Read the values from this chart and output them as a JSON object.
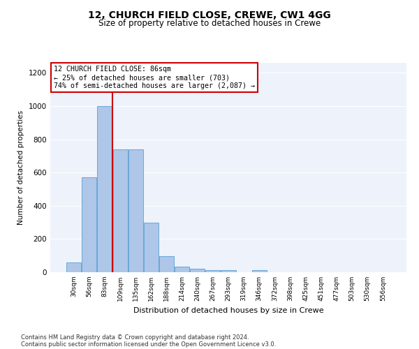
{
  "title1": "12, CHURCH FIELD CLOSE, CREWE, CW1 4GG",
  "title2": "Size of property relative to detached houses in Crewe",
  "xlabel": "Distribution of detached houses by size in Crewe",
  "ylabel": "Number of detached properties",
  "footer1": "Contains HM Land Registry data © Crown copyright and database right 2024.",
  "footer2": "Contains public sector information licensed under the Open Government Licence v3.0.",
  "bin_labels": [
    "30sqm",
    "56sqm",
    "83sqm",
    "109sqm",
    "135sqm",
    "162sqm",
    "188sqm",
    "214sqm",
    "240sqm",
    "267sqm",
    "293sqm",
    "319sqm",
    "346sqm",
    "372sqm",
    "398sqm",
    "425sqm",
    "451sqm",
    "477sqm",
    "503sqm",
    "530sqm",
    "556sqm"
  ],
  "bar_values": [
    60,
    570,
    1000,
    740,
    740,
    300,
    95,
    35,
    22,
    12,
    12,
    0,
    12,
    0,
    0,
    0,
    0,
    0,
    0,
    0,
    0
  ],
  "bar_color": "#aec6e8",
  "bar_edge_color": "#5a9fd4",
  "annotation_text1": "12 CHURCH FIELD CLOSE: 86sqm",
  "annotation_text2": "← 25% of detached houses are smaller (703)",
  "annotation_text3": "74% of semi-detached houses are larger (2,087) →",
  "vline_color": "#cc0000",
  "vline_x_bin_index": 2,
  "ylim": [
    0,
    1260
  ],
  "yticks": [
    0,
    200,
    400,
    600,
    800,
    1000,
    1200
  ],
  "annotation_box_edge_color": "#cc0000",
  "bg_color": "#eef2fb"
}
